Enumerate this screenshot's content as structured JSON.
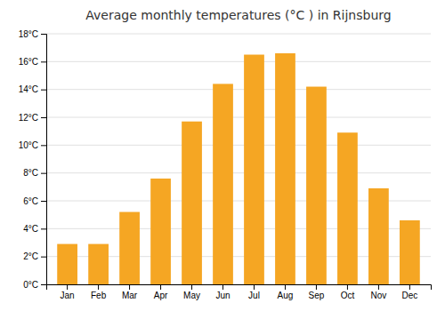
{
  "chart_data": {
    "type": "bar",
    "title": "Average monthly temperatures (°C ) in Rijnsburg",
    "categories": [
      "Jan",
      "Feb",
      "Mar",
      "Apr",
      "May",
      "Jun",
      "Jul",
      "Aug",
      "Sep",
      "Oct",
      "Nov",
      "Dec"
    ],
    "values": [
      2.9,
      2.9,
      5.2,
      7.6,
      11.7,
      14.4,
      16.5,
      16.6,
      14.2,
      10.9,
      6.9,
      4.6
    ],
    "color": "#F5A623",
    "ylim": [
      0,
      18
    ],
    "yticks": [
      {
        "value": 0,
        "label": "0°C"
      },
      {
        "value": 2,
        "label": "2°C"
      },
      {
        "value": 4,
        "label": "4°C"
      },
      {
        "value": 6,
        "label": "6°C"
      },
      {
        "value": 8,
        "label": "8°C"
      },
      {
        "value": 10,
        "label": "10°C"
      },
      {
        "value": 12,
        "label": "12°C"
      },
      {
        "value": 14,
        "label": "14°C"
      },
      {
        "value": 16,
        "label": "16°C"
      },
      {
        "value": 18,
        "label": "18°C"
      }
    ],
    "grid": true
  }
}
